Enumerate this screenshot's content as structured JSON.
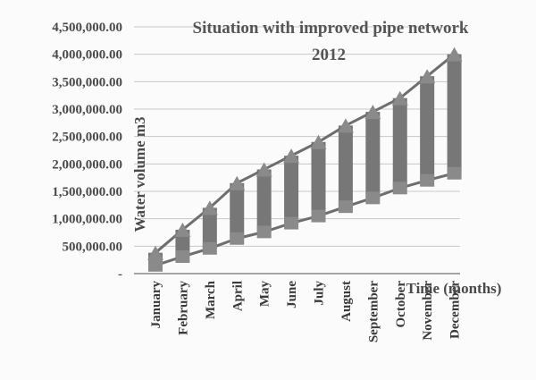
{
  "chart_data": {
    "type": "line",
    "title": "Situation with improved pipe network",
    "subtitle": "2012",
    "xlabel": "Time (months)",
    "ylabel": "Water volume m3",
    "categories": [
      "January",
      "February",
      "March",
      "April",
      "May",
      "June",
      "July",
      "August",
      "September",
      "October",
      "November",
      "December"
    ],
    "y_tick_labels": [
      "-",
      "500,000.00",
      "1,000,000.00",
      "1,500,000.00",
      "2,000,000.00",
      "2,500,000.00",
      "3,000,000.00",
      "3,500,000.00",
      "4,000,000.00",
      "4,500,000.00"
    ],
    "ylim": [
      0,
      4500000
    ],
    "grid": true,
    "series": [
      {
        "values": [
          380000,
          800000,
          1200000,
          1650000,
          1900000,
          2150000,
          2400000,
          2700000,
          2950000,
          3200000,
          3600000,
          4000000
        ]
      },
      {
        "values": [
          150000,
          310000,
          460000,
          640000,
          760000,
          920000,
          1050000,
          1220000,
          1380000,
          1560000,
          1700000,
          1830000
        ]
      }
    ],
    "colors": {
      "line": "#6e6e6e",
      "bar": "#777777",
      "marker": "#8a8a8a",
      "grid": "#c8c8c8",
      "axis": "#888888"
    }
  }
}
